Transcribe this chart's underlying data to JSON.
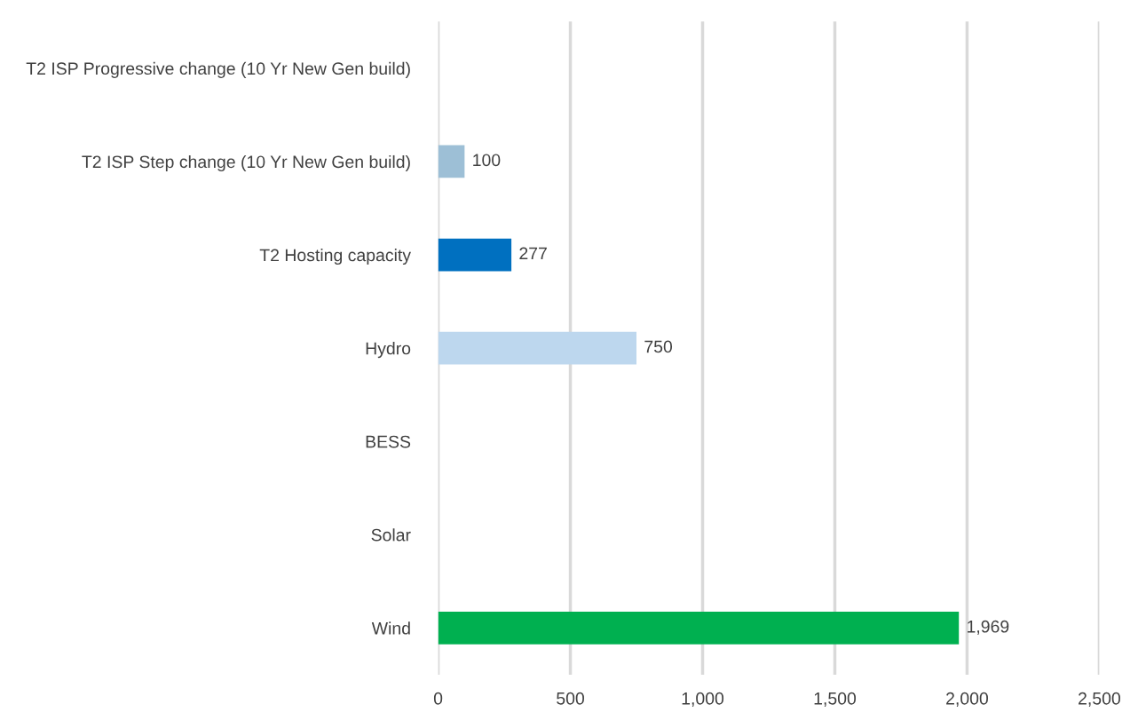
{
  "chart_data": {
    "type": "bar",
    "orientation": "horizontal",
    "categories": [
      "T2 ISP Progressive change (10 Yr New Gen build)",
      "T2 ISP Step change (10 Yr New Gen build)",
      "T2 Hosting capacity",
      "Hydro",
      "BESS",
      "Solar",
      "Wind"
    ],
    "values": [
      null,
      100,
      277,
      750,
      null,
      null,
      1969
    ],
    "colors": [
      "#9dc3e6",
      "#9dbfd6",
      "#0070c0",
      "#bdd7ee",
      "#9dc3e6",
      "#9dc3e6",
      "#00b050"
    ],
    "xlim": [
      0,
      2500
    ],
    "xticks": [
      0,
      500,
      {
        "value": 1000,
        "label": "1,000"
      },
      {
        "value": 1500,
        "label": "1,500"
      },
      {
        "value": 2000,
        "label": "2,000"
      },
      {
        "value": 2500,
        "label": "2,500"
      }
    ],
    "value_labels": [
      null,
      "100",
      "277",
      "750",
      null,
      null,
      "1,969"
    ],
    "grid": "x",
    "legend": false
  }
}
